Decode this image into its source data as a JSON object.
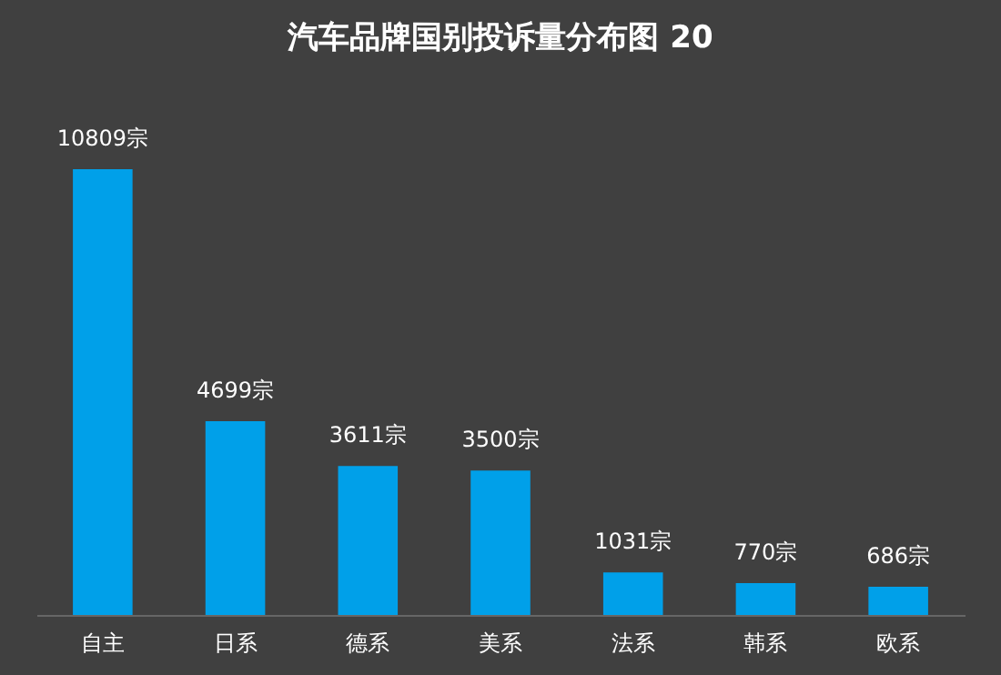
{
  "chart_data": {
    "type": "bar",
    "title": "汽车品牌国别投诉量分布图 20",
    "categories": [
      "自主",
      "日系",
      "德系",
      "美系",
      "法系",
      "韩系",
      "欧系"
    ],
    "values": [
      10809,
      4699,
      3611,
      3500,
      1031,
      770,
      686
    ],
    "value_labels": [
      "10809宗",
      "4699宗",
      "3611宗",
      "3500宗",
      "1031宗",
      "770宗",
      "686宗"
    ],
    "color": "#00a0e9"
  }
}
